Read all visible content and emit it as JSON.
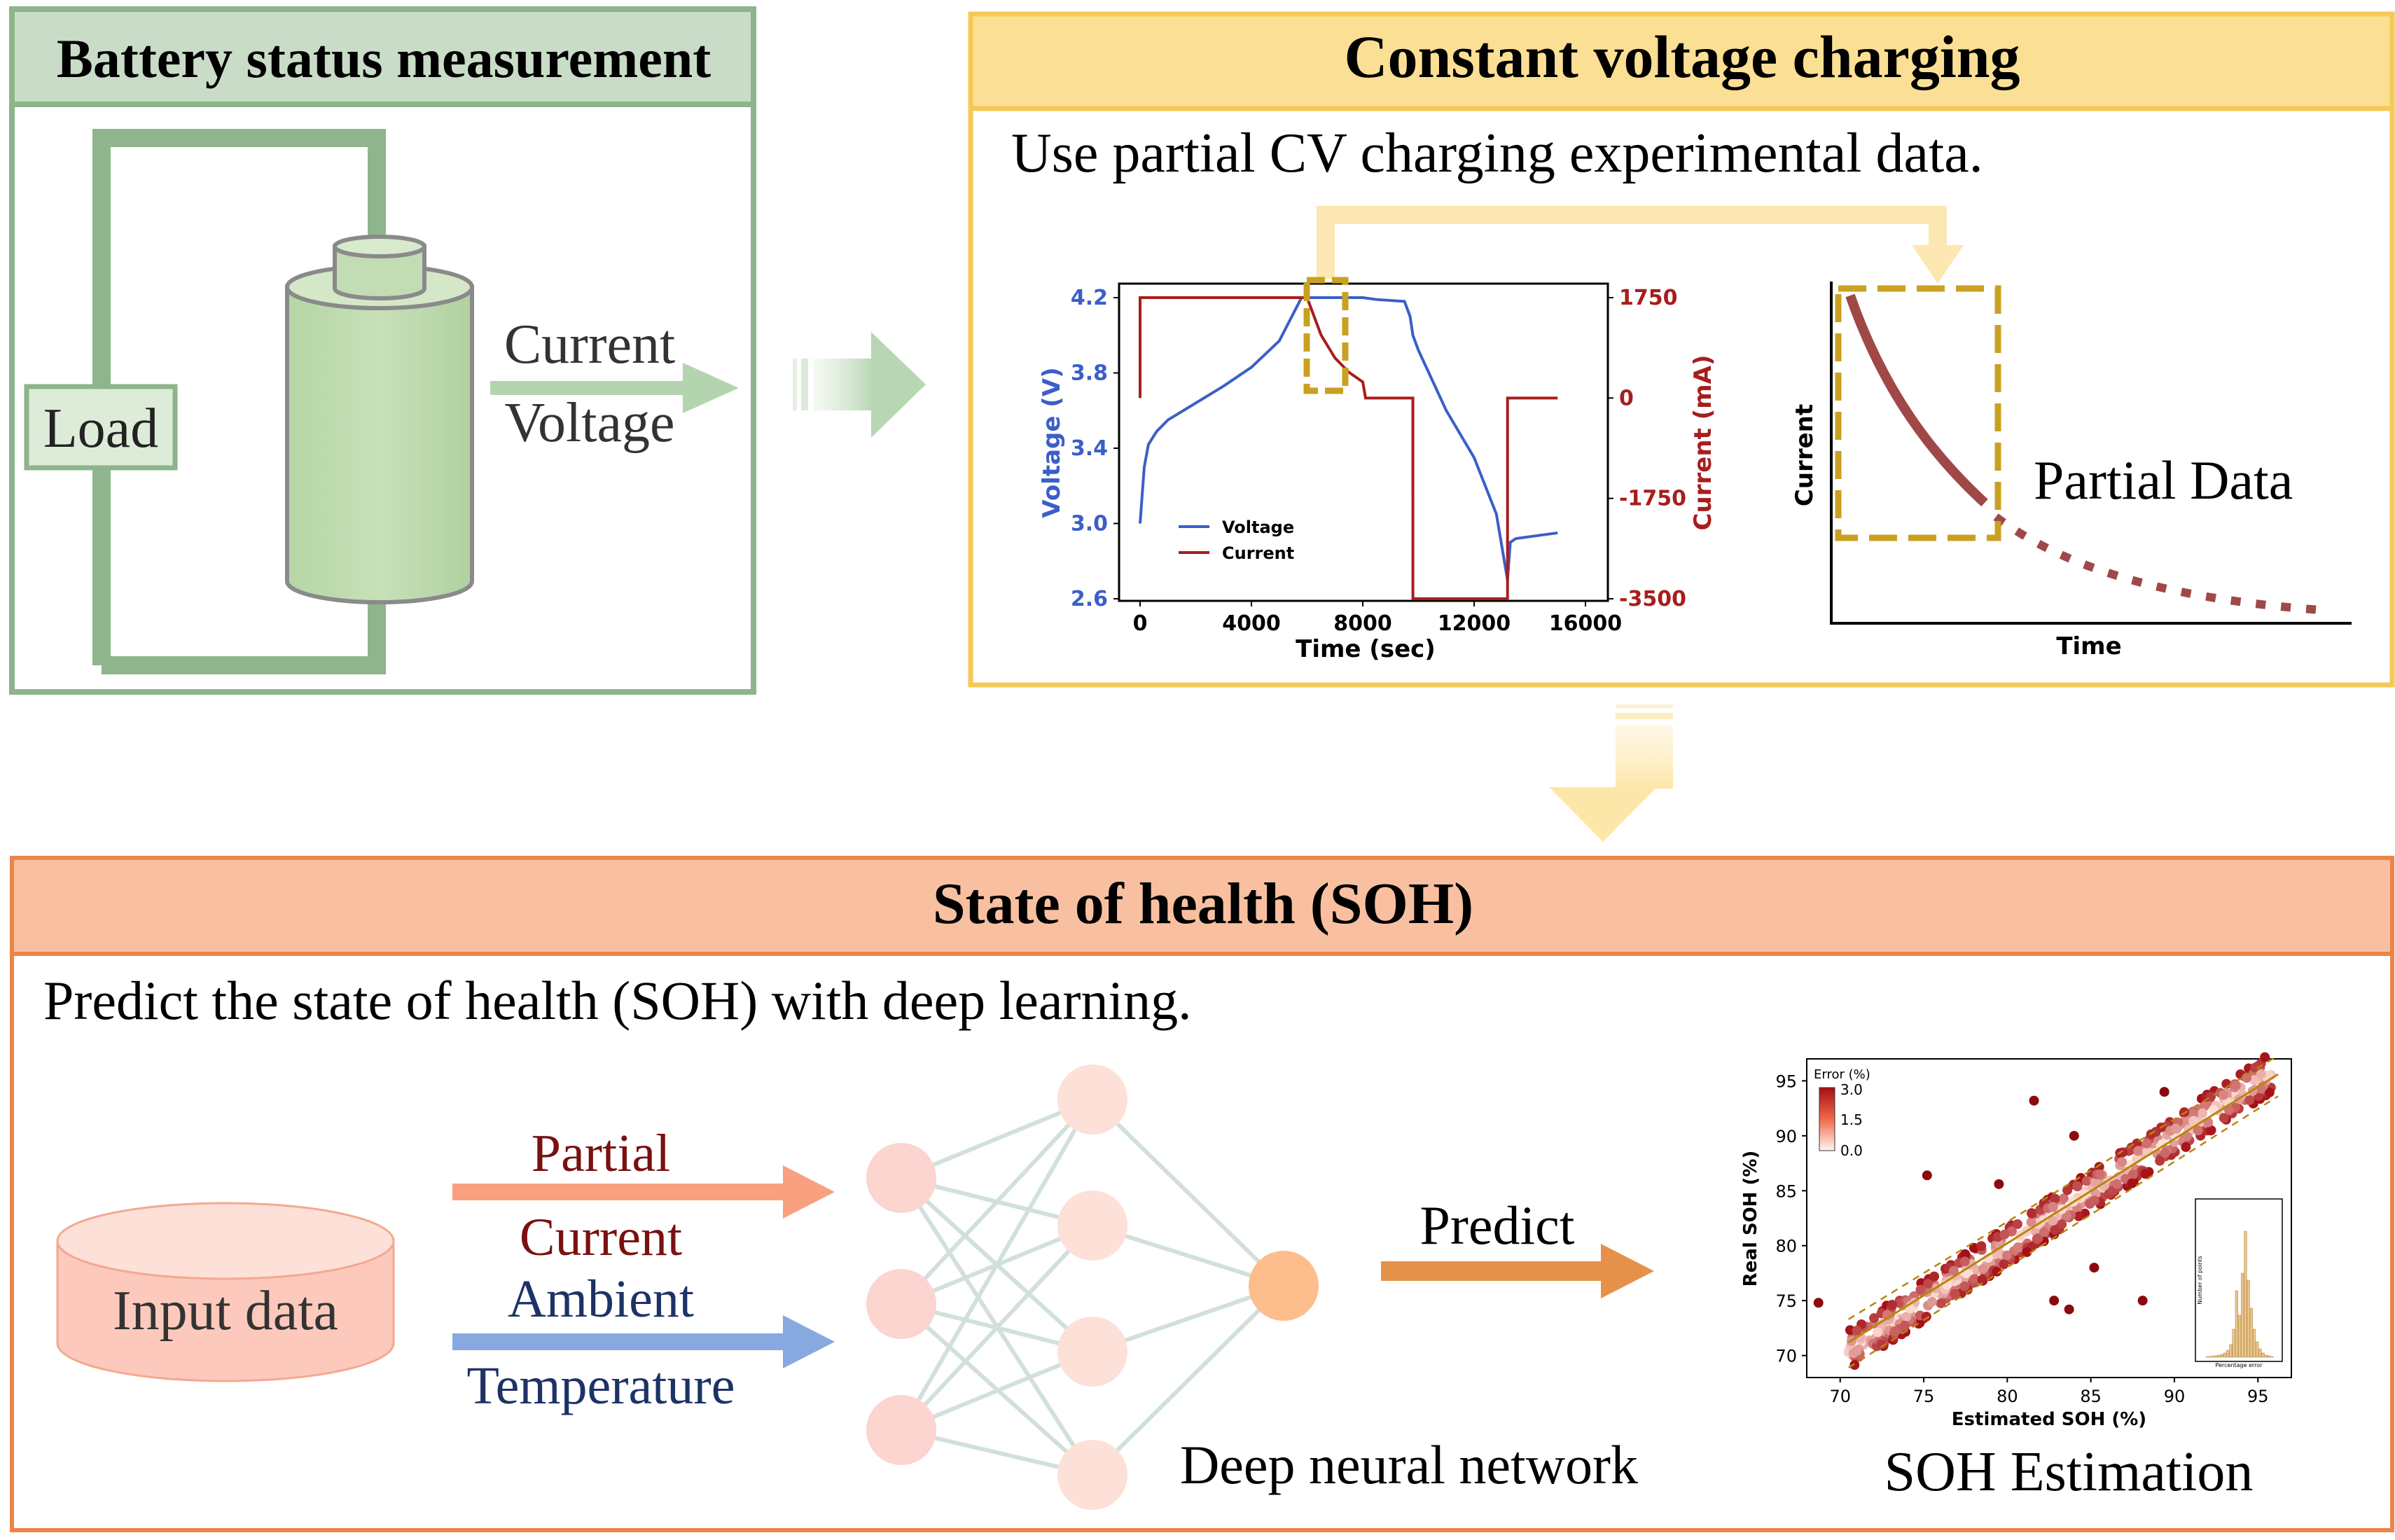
{
  "battery_panel": {
    "title": "Battery status measurement",
    "load_label": "Load",
    "arrow_labels": [
      "Current",
      "Voltage"
    ]
  },
  "cv_panel": {
    "title": "Constant voltage charging",
    "subtitle": "Use partial CV charging experimental data.",
    "partial_label": "Partial Data",
    "partial_xlabel": "Time",
    "partial_ylabel": "Current"
  },
  "soh_panel": {
    "title": "State of health (SOH)",
    "subtitle": "Predict the state of health (SOH) with deep learning.",
    "input_label": "Input data",
    "input_arrow_1": [
      "Partial",
      "Current"
    ],
    "input_arrow_2": [
      "Ambient",
      "Temperature"
    ],
    "network_label": "Deep neural network",
    "predict_label": "Predict",
    "estimation_label": "SOH Estimation"
  },
  "colors": {
    "green_border": "#8db48a",
    "green_header": "#c9dcc7",
    "yellow_border": "#f5c955",
    "yellow_header": "#fbdf94",
    "orange_border": "#ec8448",
    "orange_header": "#f8c0a0",
    "voltage_line": "#3b5fc8",
    "current_line": "#a81d1d",
    "highlight_box": "#c9a020",
    "partial_curve": "#a04848",
    "arrow_salmon": "#f8a080",
    "arrow_blue": "#88a8e0",
    "arrow_predict": "#e6914a"
  },
  "chart_data": [
    {
      "type": "line",
      "xlabel": "Time (sec)",
      "ylabel": "Voltage (V)",
      "y2label": "Current (mA)",
      "xlim": [
        0,
        16000
      ],
      "ylim": [
        2.6,
        4.2
      ],
      "y2lim": [
        -3500,
        1750
      ],
      "xticks": [
        "0",
        "4000",
        "8000",
        "12000",
        "16000"
      ],
      "yticks": [
        "2.6",
        "3.0",
        "3.4",
        "3.8",
        "4.2"
      ],
      "y2ticks": [
        "-3500",
        "-1750",
        "0",
        "1750"
      ],
      "legend_position": "bottom-left",
      "series": [
        {
          "name": "Voltage",
          "axis": "left",
          "x": [
            0,
            150,
            300,
            600,
            1000,
            2000,
            3000,
            4000,
            5000,
            5800,
            6000,
            7000,
            7500,
            8000,
            8500,
            9500,
            9700,
            9800,
            10000,
            11000,
            12000,
            12800,
            13200,
            13300,
            13500,
            14000,
            15000
          ],
          "y": [
            3.0,
            3.3,
            3.42,
            3.49,
            3.55,
            3.64,
            3.73,
            3.83,
            3.97,
            4.2,
            4.2,
            4.2,
            4.2,
            4.2,
            4.19,
            4.18,
            4.1,
            4.0,
            3.92,
            3.6,
            3.35,
            3.05,
            2.7,
            2.9,
            2.92,
            2.93,
            2.95
          ]
        },
        {
          "name": "Current",
          "axis": "right",
          "x": [
            0,
            1,
            5800,
            6000,
            6500,
            7000,
            7500,
            8000,
            8100,
            9800,
            9801,
            13200,
            13201,
            15000
          ],
          "y": [
            0,
            1750,
            1750,
            1750,
            1100,
            700,
            450,
            280,
            0,
            0,
            -3500,
            -3500,
            0,
            0
          ]
        }
      ]
    },
    {
      "type": "scatter",
      "xlabel": "Estimated SOH (%)",
      "ylabel": "Real SOH (%)",
      "xlim": [
        68,
        97
      ],
      "ylim": [
        68,
        97
      ],
      "xticks": [
        "70",
        "75",
        "80",
        "85",
        "90",
        "95"
      ],
      "yticks": [
        "70",
        "75",
        "80",
        "85",
        "90",
        "95"
      ],
      "colorbar": {
        "title": "Error (%)",
        "ticks": [
          "3.0",
          "1.5",
          "0.0"
        ]
      },
      "inset_xlabel": "Percentage error",
      "inset_ylabel": "Number of points",
      "outliers": [
        {
          "x": 68.7,
          "y": 74.8
        },
        {
          "x": 75.2,
          "y": 86.4
        },
        {
          "x": 81.6,
          "y": 93.2
        },
        {
          "x": 82.8,
          "y": 75.0
        },
        {
          "x": 83.7,
          "y": 74.2
        },
        {
          "x": 85.2,
          "y": 78.0
        },
        {
          "x": 88.1,
          "y": 75.0
        },
        {
          "x": 89.4,
          "y": 94.0
        },
        {
          "x": 79.5,
          "y": 85.6
        },
        {
          "x": 84.0,
          "y": 90.0
        }
      ]
    }
  ]
}
